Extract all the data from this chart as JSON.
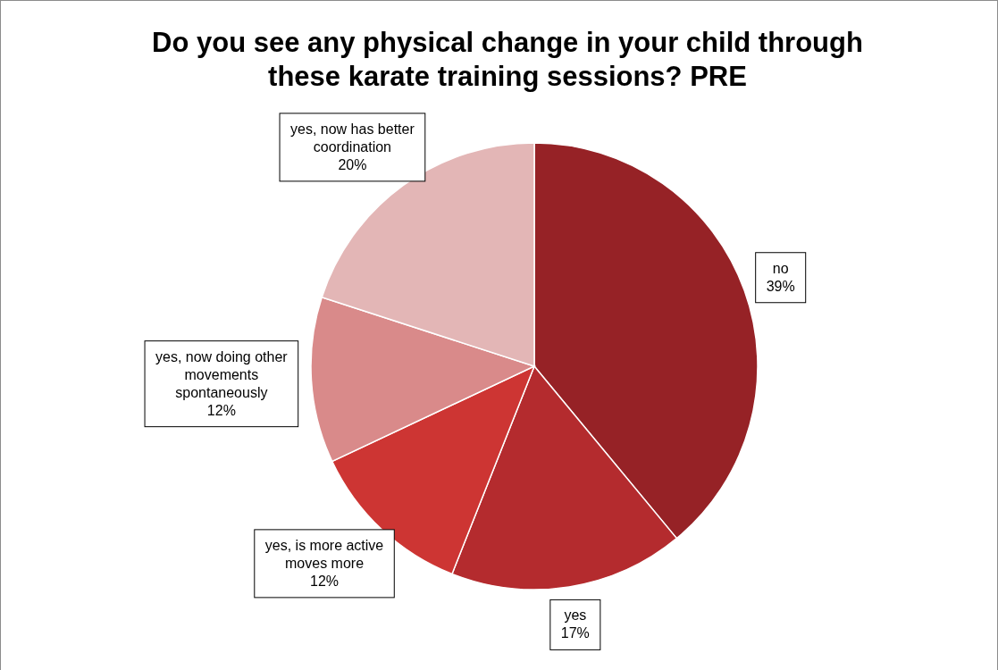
{
  "chart_data": {
    "type": "pie",
    "title": "Do you see any physical change in your child through these karate training sessions? PRE",
    "categories": [
      "no",
      "yes",
      "yes, is more active moves more",
      "yes, now doing other movements spontaneously",
      "yes, now has better coordination"
    ],
    "values": [
      39,
      17,
      12,
      12,
      20
    ],
    "value_labels": [
      "39%",
      "17%",
      "12%",
      "12%",
      "20%"
    ],
    "colors": [
      "#962226",
      "#b42b2e",
      "#cd3533",
      "#d98a8a",
      "#e3b6b6"
    ],
    "legend": false
  }
}
